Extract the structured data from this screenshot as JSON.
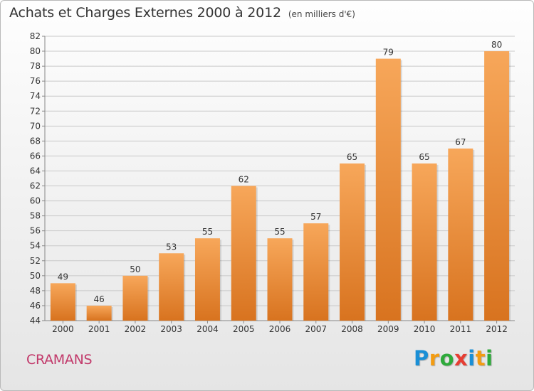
{
  "header": {
    "title": "Achats et Charges Externes 2000 à 2012",
    "unit": "(en milliers d'€)"
  },
  "commune": "CRAMANS",
  "logo": {
    "text": "Proxiti",
    "letters": [
      {
        "ch": "P",
        "color": "#1a8fd6"
      },
      {
        "ch": "r",
        "color": "#f39c12"
      },
      {
        "ch": "o",
        "color": "#2eaa3b"
      },
      {
        "ch": "x",
        "color": "#e63e33"
      },
      {
        "ch": "i",
        "color": "#1a8fd6"
      },
      {
        "ch": "t",
        "color": "#f39c12"
      },
      {
        "ch": "i",
        "color": "#2eaa3b"
      }
    ]
  },
  "colors": {
    "bar_top": "#f7a75a",
    "bar_bottom": "#d8731f",
    "grid": "#c9c9c9",
    "axis_text": "#333333",
    "commune_text": "#c23a6b"
  },
  "chart_data": {
    "type": "bar",
    "title": "Achats et Charges Externes 2000 à 2012",
    "subtitle": "(en milliers d'€)",
    "categories": [
      "2000",
      "2001",
      "2002",
      "2003",
      "2004",
      "2005",
      "2006",
      "2007",
      "2008",
      "2009",
      "2010",
      "2011",
      "2012"
    ],
    "values": [
      49,
      46,
      50,
      53,
      55,
      62,
      55,
      57,
      65,
      79,
      65,
      67,
      80
    ],
    "ylim": [
      44,
      82
    ],
    "yticks": [
      44,
      46,
      48,
      50,
      52,
      54,
      56,
      58,
      60,
      62,
      64,
      66,
      68,
      70,
      72,
      74,
      76,
      78,
      80,
      82
    ],
    "grid": true,
    "data_labels": true
  }
}
